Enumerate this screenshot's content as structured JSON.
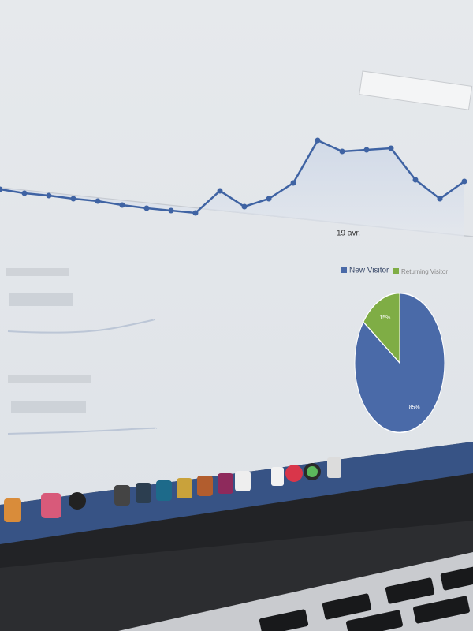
{
  "line_chart": {
    "type": "line",
    "x_label": "19 avr.",
    "color": "#3f63a3",
    "values": [
      60,
      55,
      52,
      48,
      45,
      40,
      36,
      33,
      30,
      58,
      38,
      48,
      68,
      122,
      108,
      110,
      112,
      72,
      48,
      70
    ],
    "ylim": [
      0,
      150
    ]
  },
  "pie_chart": {
    "type": "pie",
    "series": [
      {
        "name": "New Visitor",
        "color": "#4a6aa8",
        "values": [
          85
        ],
        "value_labels": [
          "85%"
        ]
      },
      {
        "name": "Returning Visitor",
        "color": "#7fad45",
        "values": [
          15
        ],
        "value_labels": [
          "15%"
        ]
      }
    ]
  }
}
